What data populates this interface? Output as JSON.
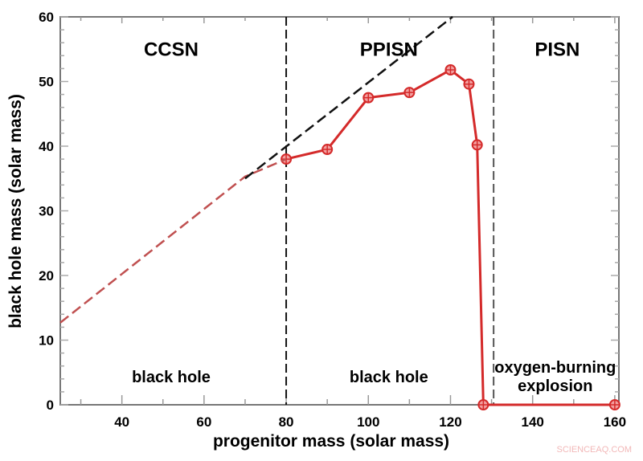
{
  "chart_data": {
    "type": "line",
    "xlabel": "progenitor mass (solar mass)",
    "ylabel": "black hole mass (solar mass)",
    "xlim": [
      25,
      161
    ],
    "ylim": [
      0,
      60
    ],
    "xticks": [
      40,
      60,
      80,
      100,
      120,
      140,
      160
    ],
    "yticks": [
      0,
      10,
      20,
      30,
      40,
      50,
      60
    ],
    "grid": false,
    "series": [
      {
        "style": "solid-markers",
        "color": "#d42a2a",
        "x": [
          80,
          90,
          100,
          110,
          120,
          124.5,
          126.5,
          128,
          160
        ],
        "y": [
          38,
          39.5,
          47.5,
          48.3,
          51.8,
          49.6,
          40.2,
          0,
          0
        ]
      },
      {
        "style": "dashed",
        "color": "#c05050",
        "x": [
          25,
          70,
          80
        ],
        "y": [
          12.7,
          35.3,
          38
        ]
      },
      {
        "style": "dashed",
        "color": "#111111",
        "x": [
          70,
          120.5
        ],
        "y": [
          35,
          60
        ]
      }
    ],
    "vlines": [
      80,
      130.5
    ],
    "regions": [
      {
        "label": "CCSN",
        "x": 52,
        "y": 54
      },
      {
        "label": "PPISN",
        "x": 105,
        "y": 54
      },
      {
        "label": "PISN",
        "x": 146,
        "y": 54
      }
    ],
    "annotations": [
      {
        "lines": [
          "black hole"
        ],
        "x": 52,
        "y": 3.5
      },
      {
        "lines": [
          "black hole"
        ],
        "x": 105,
        "y": 3.5
      },
      {
        "lines": [
          "oxygen-burning",
          "explosion"
        ],
        "x": 145.5,
        "y": 5
      }
    ],
    "watermark": "SCIENCEAQ.COM"
  }
}
